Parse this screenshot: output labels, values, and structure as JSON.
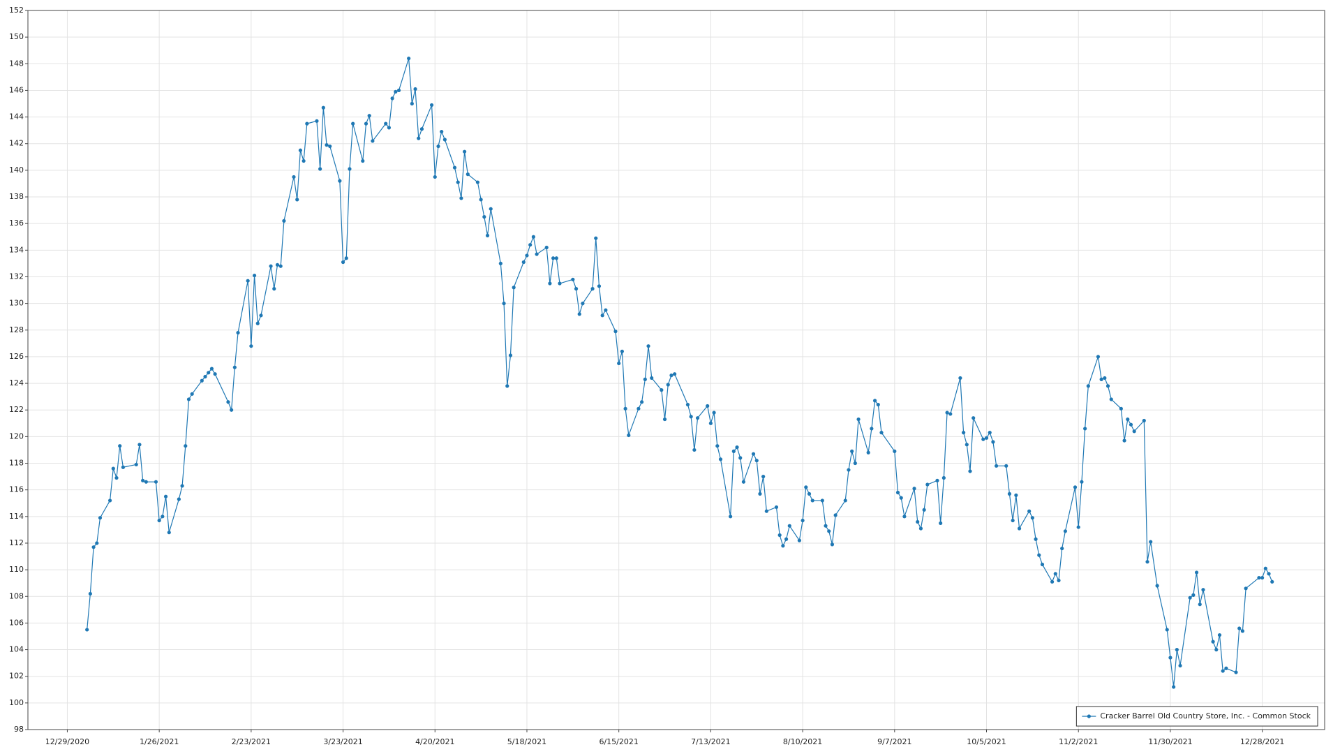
{
  "chart_data": {
    "type": "line",
    "x": [
      "1/4/2021",
      "1/5/2021",
      "1/6/2021",
      "1/7/2021",
      "1/8/2021",
      "1/11/2021",
      "1/12/2021",
      "1/13/2021",
      "1/14/2021",
      "1/15/2021",
      "1/19/2021",
      "1/20/2021",
      "1/21/2021",
      "1/22/2021",
      "1/25/2021",
      "1/26/2021",
      "1/27/2021",
      "1/28/2021",
      "1/29/2021",
      "2/1/2021",
      "2/2/2021",
      "2/3/2021",
      "2/4/2021",
      "2/5/2021",
      "2/8/2021",
      "2/9/2021",
      "2/10/2021",
      "2/11/2021",
      "2/12/2021",
      "2/16/2021",
      "2/17/2021",
      "2/18/2021",
      "2/19/2021",
      "2/22/2021",
      "2/23/2021",
      "2/24/2021",
      "2/25/2021",
      "2/26/2021",
      "3/1/2021",
      "3/2/2021",
      "3/3/2021",
      "3/4/2021",
      "3/5/2021",
      "3/8/2021",
      "3/9/2021",
      "3/10/2021",
      "3/11/2021",
      "3/12/2021",
      "3/15/2021",
      "3/16/2021",
      "3/17/2021",
      "3/18/2021",
      "3/19/2021",
      "3/22/2021",
      "3/23/2021",
      "3/24/2021",
      "3/25/2021",
      "3/26/2021",
      "3/29/2021",
      "3/30/2021",
      "3/31/2021",
      "4/1/2021",
      "4/5/2021",
      "4/6/2021",
      "4/7/2021",
      "4/8/2021",
      "4/9/2021",
      "4/12/2021",
      "4/13/2021",
      "4/14/2021",
      "4/15/2021",
      "4/16/2021",
      "4/19/2021",
      "4/20/2021",
      "4/21/2021",
      "4/22/2021",
      "4/23/2021",
      "4/26/2021",
      "4/27/2021",
      "4/28/2021",
      "4/29/2021",
      "4/30/2021",
      "5/3/2021",
      "5/4/2021",
      "5/5/2021",
      "5/6/2021",
      "5/7/2021",
      "5/10/2021",
      "5/11/2021",
      "5/12/2021",
      "5/13/2021",
      "5/14/2021",
      "5/17/2021",
      "5/18/2021",
      "5/19/2021",
      "5/20/2021",
      "5/21/2021",
      "5/24/2021",
      "5/25/2021",
      "5/26/2021",
      "5/27/2021",
      "5/28/2021",
      "6/1/2021",
      "6/2/2021",
      "6/3/2021",
      "6/4/2021",
      "6/7/2021",
      "6/8/2021",
      "6/9/2021",
      "6/10/2021",
      "6/11/2021",
      "6/14/2021",
      "6/15/2021",
      "6/16/2021",
      "6/17/2021",
      "6/18/2021",
      "6/21/2021",
      "6/22/2021",
      "6/23/2021",
      "6/24/2021",
      "6/25/2021",
      "6/28/2021",
      "6/29/2021",
      "6/30/2021",
      "7/1/2021",
      "7/2/2021",
      "7/6/2021",
      "7/7/2021",
      "7/8/2021",
      "7/9/2021",
      "7/12/2021",
      "7/13/2021",
      "7/14/2021",
      "7/15/2021",
      "7/16/2021",
      "7/19/2021",
      "7/20/2021",
      "7/21/2021",
      "7/22/2021",
      "7/23/2021",
      "7/26/2021",
      "7/27/2021",
      "7/28/2021",
      "7/29/2021",
      "7/30/2021",
      "8/2/2021",
      "8/3/2021",
      "8/4/2021",
      "8/5/2021",
      "8/6/2021",
      "8/9/2021",
      "8/10/2021",
      "8/11/2021",
      "8/12/2021",
      "8/13/2021",
      "8/16/2021",
      "8/17/2021",
      "8/18/2021",
      "8/19/2021",
      "8/20/2021",
      "8/23/2021",
      "8/24/2021",
      "8/25/2021",
      "8/26/2021",
      "8/27/2021",
      "8/30/2021",
      "8/31/2021",
      "9/1/2021",
      "9/2/2021",
      "9/3/2021",
      "9/7/2021",
      "9/8/2021",
      "9/9/2021",
      "9/10/2021",
      "9/13/2021",
      "9/14/2021",
      "9/15/2021",
      "9/16/2021",
      "9/17/2021",
      "9/20/2021",
      "9/21/2021",
      "9/22/2021",
      "9/23/2021",
      "9/24/2021",
      "9/27/2021",
      "9/28/2021",
      "9/29/2021",
      "9/30/2021",
      "10/1/2021",
      "10/4/2021",
      "10/5/2021",
      "10/6/2021",
      "10/7/2021",
      "10/8/2021",
      "10/11/2021",
      "10/12/2021",
      "10/13/2021",
      "10/14/2021",
      "10/15/2021",
      "10/18/2021",
      "10/19/2021",
      "10/20/2021",
      "10/21/2021",
      "10/22/2021",
      "10/25/2021",
      "10/26/2021",
      "10/27/2021",
      "10/28/2021",
      "10/29/2021",
      "11/1/2021",
      "11/2/2021",
      "11/3/2021",
      "11/4/2021",
      "11/5/2021",
      "11/8/2021",
      "11/9/2021",
      "11/10/2021",
      "11/11/2021",
      "11/12/2021",
      "11/15/2021",
      "11/16/2021",
      "11/17/2021",
      "11/18/2021",
      "11/19/2021",
      "11/22/2021",
      "11/23/2021",
      "11/24/2021",
      "11/26/2021",
      "11/29/2021",
      "11/30/2021",
      "12/1/2021",
      "12/2/2021",
      "12/3/2021",
      "12/6/2021",
      "12/7/2021",
      "12/8/2021",
      "12/9/2021",
      "12/10/2021",
      "12/13/2021",
      "12/14/2021",
      "12/15/2021",
      "12/16/2021",
      "12/17/2021",
      "12/20/2021",
      "12/21/2021",
      "12/22/2021",
      "12/23/2021",
      "12/27/2021",
      "12/28/2021",
      "12/29/2021",
      "12/30/2021",
      "12/31/2021"
    ],
    "series": [
      {
        "name": "Cracker Barrel Old Country Store, Inc. - Common Stock",
        "color": "#1f78b4",
        "values": [
          105.5,
          108.2,
          111.7,
          112,
          113.9,
          115.2,
          117.6,
          116.9,
          119.3,
          117.7,
          117.9,
          119.4,
          116.7,
          116.6,
          116.6,
          113.7,
          114,
          115.5,
          112.8,
          115.3,
          116.3,
          119.3,
          122.8,
          123.2,
          124.2,
          124.5,
          124.8,
          125.1,
          124.7,
          122.6,
          122,
          125.2,
          127.8,
          131.7,
          126.8,
          132.1,
          128.5,
          129.1,
          132.8,
          131.1,
          132.9,
          132.8,
          136.2,
          139.5,
          137.8,
          141.5,
          140.7,
          143.5,
          143.7,
          140.1,
          144.7,
          141.9,
          141.8,
          139.2,
          133.1,
          133.4,
          140.1,
          143.5,
          140.7,
          143.5,
          144.1,
          142.2,
          143.5,
          143.2,
          145.4,
          145.9,
          146,
          148.4,
          145,
          146.1,
          142.4,
          143.1,
          144.9,
          139.5,
          141.8,
          142.9,
          142.3,
          140.2,
          139.1,
          137.9,
          141.4,
          139.7,
          139.1,
          137.8,
          136.5,
          135.1,
          137.1,
          133,
          130,
          123.8,
          126.1,
          131.2,
          133.1,
          133.6,
          134.4,
          135,
          133.7,
          134.2,
          131.5,
          133.4,
          133.4,
          131.5,
          131.8,
          131.1,
          129.2,
          130,
          131.1,
          134.9,
          131.3,
          129.1,
          129.5,
          127.9,
          125.5,
          126.4,
          122.1,
          120.1,
          122.1,
          122.6,
          124.3,
          126.8,
          124.4,
          123.5,
          121.3,
          123.9,
          124.6,
          124.7,
          122.4,
          121.5,
          119,
          121.4,
          122.3,
          121,
          121.8,
          119.3,
          118.3,
          114,
          118.9,
          119.2,
          118.4,
          116.6,
          118.7,
          118.2,
          115.7,
          117,
          114.4,
          114.7,
          112.6,
          111.8,
          112.3,
          113.3,
          112.2,
          113.7,
          116.2,
          115.7,
          115.2,
          115.2,
          113.3,
          112.9,
          111.9,
          114.1,
          115.2,
          117.5,
          118.9,
          118,
          121.3,
          118.8,
          120.6,
          122.7,
          122.4,
          120.3,
          118.9,
          115.8,
          115.4,
          114,
          116.1,
          113.6,
          113.1,
          114.5,
          116.4,
          116.7,
          113.5,
          116.9,
          121.8,
          121.7,
          124.4,
          120.3,
          119.4,
          117.4,
          121.4,
          119.8,
          119.9,
          120.3,
          119.6,
          117.8,
          117.8,
          115.7,
          113.7,
          115.6,
          113.1,
          114.4,
          113.9,
          112.3,
          111.1,
          110.4,
          109.1,
          109.7,
          109.2,
          111.6,
          112.9,
          116.2,
          113.2,
          116.6,
          120.6,
          123.8,
          126,
          124.3,
          124.4,
          123.8,
          122.8,
          122.1,
          119.7,
          121.3,
          120.9,
          120.4,
          121.2,
          110.6,
          112.1,
          108.8,
          105.5,
          103.4,
          101.2,
          104,
          102.8,
          107.9,
          108.1,
          109.8,
          107.4,
          108.5,
          104.6,
          104,
          105.1,
          102.4,
          102.6,
          102.3,
          105.6,
          105.4,
          108.6,
          109.4,
          109.4,
          110.1,
          109.7,
          109.1
        ]
      }
    ],
    "xlim": [
      "12/17/2020",
      "1/16/2022"
    ],
    "xticks": [
      "12/29/2020",
      "1/26/2021",
      "2/23/2021",
      "3/23/2021",
      "4/20/2021",
      "5/18/2021",
      "6/15/2021",
      "7/13/2021",
      "8/10/2021",
      "9/7/2021",
      "10/5/2021",
      "11/2/2021",
      "11/30/2021",
      "12/28/2021"
    ],
    "ylim": [
      98,
      152
    ],
    "yticks": [
      98,
      100,
      102,
      104,
      106,
      108,
      110,
      112,
      114,
      116,
      118,
      120,
      122,
      124,
      126,
      128,
      130,
      132,
      134,
      136,
      138,
      140,
      142,
      144,
      146,
      148,
      150,
      152
    ],
    "grid": true,
    "markers": true,
    "legend": "lower right"
  }
}
